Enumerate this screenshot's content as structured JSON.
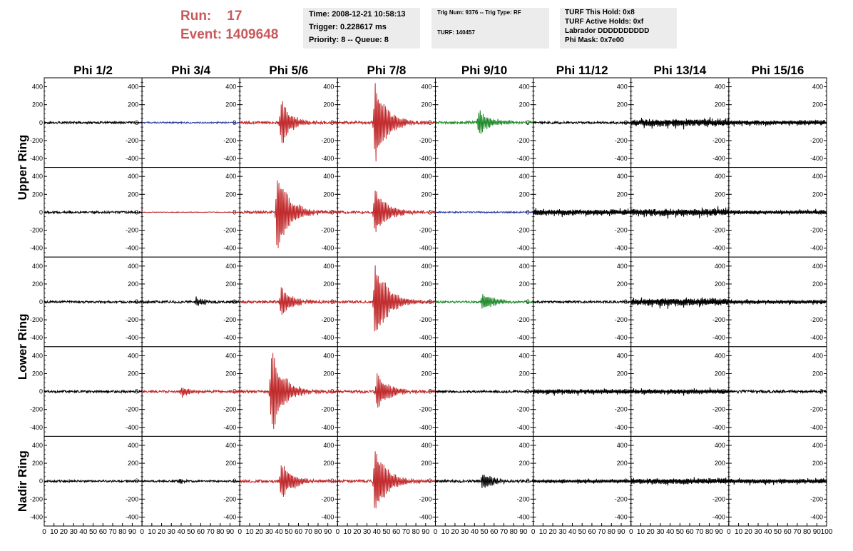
{
  "header": {
    "run_label": "Run:",
    "run_value": "17",
    "event_label": "Event:",
    "event_value": "1409648",
    "box1": {
      "time": "Time: 2008-12-21 10:58:13",
      "trigger": "Trigger: 0.228617 ms",
      "priority": "Priority: 8 -- Queue: 8"
    },
    "box2": {
      "trig": "Trig Num: 9376 -- Trig Type: RF",
      "turf": "TURF: 140457"
    },
    "box3": {
      "hold": "TURF This Hold: 0x8",
      "active": "TURF Active Holds: 0xf",
      "labrador": "Labrador DDDDDDDDDD",
      "phimask": "Phi Mask: 0x7e00"
    }
  },
  "colors": {
    "black": "#000000",
    "red": "#c0282a",
    "blue": "#2b3aa0",
    "green": "#1f8a2a",
    "header_text": "#c9585a",
    "header_box": "#ececec"
  },
  "chart_data": {
    "type": "line",
    "columns": [
      "Phi 1/2",
      "Phi 3/4",
      "Phi 5/6",
      "Phi 7/8",
      "Phi 9/10",
      "Phi 11/12",
      "Phi 13/14",
      "Phi 15/16"
    ],
    "rows": [
      "Upper Ring",
      "Upper Ring",
      "Lower Ring",
      "Lower Ring",
      "Nadir Ring"
    ],
    "row_labels": [
      {
        "label": "Upper Ring",
        "rows": [
          0,
          1
        ]
      },
      {
        "label": "Lower Ring",
        "rows": [
          2,
          3
        ]
      },
      {
        "label": "Nadir Ring",
        "rows": [
          4
        ]
      }
    ],
    "xlim": [
      0,
      100
    ],
    "ylim": [
      -500,
      500
    ],
    "yticks": [
      400,
      200,
      0,
      -200,
      -400
    ],
    "xticks": [
      0,
      10,
      20,
      30,
      40,
      50,
      60,
      70,
      80,
      90,
      100
    ],
    "grid": false,
    "panels": [
      [
        {
          "color": "black",
          "noise": 12,
          "pulse": 0,
          "center": 50,
          "width": 10,
          "style": "normal"
        },
        {
          "color": "blue",
          "noise": 8,
          "pulse": 0,
          "center": 50,
          "width": 10,
          "style": "normal"
        },
        {
          "color": "red",
          "noise": 15,
          "pulse": 250,
          "center": 42,
          "width": 10,
          "style": "normal"
        },
        {
          "color": "red",
          "noise": 15,
          "pulse": 450,
          "center": 38,
          "width": 12,
          "style": "normal"
        },
        {
          "color": "green",
          "noise": 15,
          "pulse": 140,
          "center": 44,
          "width": 12,
          "style": "normal"
        },
        {
          "color": "black",
          "noise": 12,
          "pulse": 0,
          "center": 50,
          "width": 10,
          "style": "normal"
        },
        {
          "color": "black",
          "noise": 40,
          "pulse": 0,
          "center": 50,
          "width": 10,
          "style": "ringing"
        },
        {
          "color": "black",
          "noise": 25,
          "pulse": 0,
          "center": 50,
          "width": 10,
          "style": "ringing"
        }
      ],
      [
        {
          "color": "black",
          "noise": 12,
          "pulse": 0,
          "center": 50,
          "width": 10,
          "style": "normal"
        },
        {
          "color": "red",
          "noise": 4,
          "pulse": 0,
          "center": 50,
          "width": 10,
          "style": "normal"
        },
        {
          "color": "red",
          "noise": 15,
          "pulse": 450,
          "center": 38,
          "width": 12,
          "style": "normal"
        },
        {
          "color": "red",
          "noise": 15,
          "pulse": 280,
          "center": 38,
          "width": 12,
          "style": "normal"
        },
        {
          "color": "blue",
          "noise": 8,
          "pulse": 0,
          "center": 50,
          "width": 10,
          "style": "normal"
        },
        {
          "color": "black",
          "noise": 30,
          "pulse": 0,
          "center": 50,
          "width": 10,
          "style": "ringing"
        },
        {
          "color": "black",
          "noise": 40,
          "pulse": 0,
          "center": 50,
          "width": 10,
          "style": "ringing"
        },
        {
          "color": "black",
          "noise": 20,
          "pulse": 0,
          "center": 50,
          "width": 10,
          "style": "ringing"
        }
      ],
      [
        {
          "color": "black",
          "noise": 12,
          "pulse": 0,
          "center": 50,
          "width": 10,
          "style": "normal"
        },
        {
          "color": "black",
          "noise": 14,
          "pulse": 50,
          "center": 55,
          "width": 10,
          "style": "normal"
        },
        {
          "color": "red",
          "noise": 15,
          "pulse": 150,
          "center": 42,
          "width": 12,
          "style": "normal"
        },
        {
          "color": "red",
          "noise": 15,
          "pulse": 450,
          "center": 38,
          "width": 12,
          "style": "normal"
        },
        {
          "color": "green",
          "noise": 12,
          "pulse": 100,
          "center": 48,
          "width": 12,
          "style": "normal"
        },
        {
          "color": "black",
          "noise": 12,
          "pulse": 0,
          "center": 50,
          "width": 10,
          "style": "normal"
        },
        {
          "color": "black",
          "noise": 40,
          "pulse": 0,
          "center": 50,
          "width": 10,
          "style": "ringing"
        },
        {
          "color": "black",
          "noise": 20,
          "pulse": 0,
          "center": 50,
          "width": 10,
          "style": "ringing"
        }
      ],
      [
        {
          "color": "black",
          "noise": 12,
          "pulse": 0,
          "center": 50,
          "width": 10,
          "style": "normal"
        },
        {
          "color": "red",
          "noise": 14,
          "pulse": 60,
          "center": 40,
          "width": 10,
          "style": "normal"
        },
        {
          "color": "red",
          "noise": 15,
          "pulse": 450,
          "center": 32,
          "width": 12,
          "style": "normal"
        },
        {
          "color": "red",
          "noise": 15,
          "pulse": 200,
          "center": 40,
          "width": 12,
          "style": "normal"
        },
        {
          "color": "black",
          "noise": 12,
          "pulse": 0,
          "center": 50,
          "width": 10,
          "style": "normal"
        },
        {
          "color": "black",
          "noise": 25,
          "pulse": 0,
          "center": 50,
          "width": 10,
          "style": "ringing"
        },
        {
          "color": "black",
          "noise": 25,
          "pulse": 0,
          "center": 50,
          "width": 10,
          "style": "ringing"
        },
        {
          "color": "black",
          "noise": 15,
          "pulse": 0,
          "center": 50,
          "width": 10,
          "style": "normal"
        }
      ],
      [
        {
          "color": "black",
          "noise": 12,
          "pulse": 0,
          "center": 50,
          "width": 10,
          "style": "normal"
        },
        {
          "color": "black",
          "noise": 10,
          "pulse": 30,
          "center": 38,
          "width": 6,
          "style": "normal"
        },
        {
          "color": "red",
          "noise": 15,
          "pulse": 200,
          "center": 42,
          "width": 12,
          "style": "normal"
        },
        {
          "color": "red",
          "noise": 15,
          "pulse": 400,
          "center": 38,
          "width": 12,
          "style": "normal"
        },
        {
          "color": "black",
          "noise": 14,
          "pulse": 90,
          "center": 48,
          "width": 12,
          "style": "normal"
        },
        {
          "color": "black",
          "noise": 18,
          "pulse": 0,
          "center": 50,
          "width": 10,
          "style": "ringing"
        },
        {
          "color": "black",
          "noise": 30,
          "pulse": 0,
          "center": 50,
          "width": 10,
          "style": "ringing"
        },
        {
          "color": "black",
          "noise": 25,
          "pulse": 0,
          "center": 50,
          "width": 10,
          "style": "ringing"
        }
      ]
    ]
  }
}
